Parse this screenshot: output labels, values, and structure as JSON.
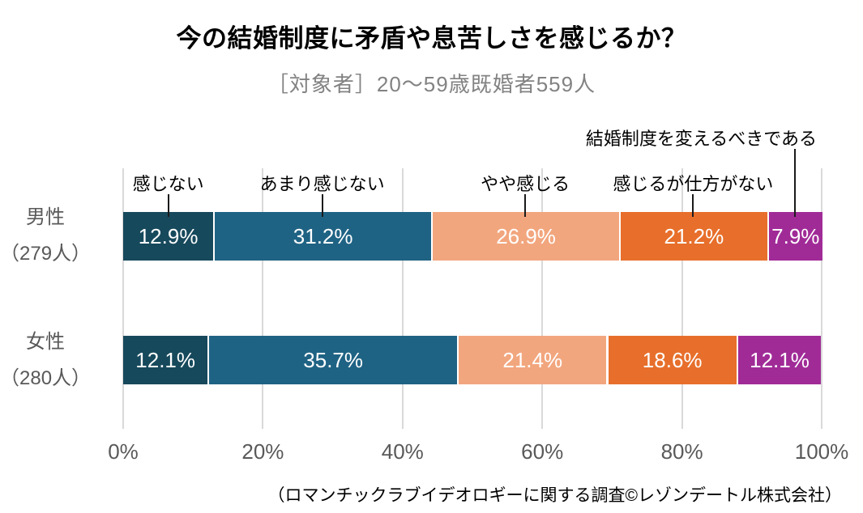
{
  "title": "今の結婚制度に矛盾や息苦しさを感じるか？",
  "subtitle": "［対象者］20〜59歳既婚者559人",
  "source_note": "（ロマンチックラブイデオロギーに関する調査©レゾンデートル株式会社）",
  "colors": {
    "grid": "#d9d9d9",
    "axis_text": "#595959",
    "subtitle_text": "#828282",
    "value_text": "#ffffff",
    "leader_line": "#1a1a1a"
  },
  "chart_data": {
    "type": "bar",
    "variant": "horizontal-stacked-100percent",
    "title": "今の結婚制度に矛盾や息苦しさを感じるか？",
    "subtitle": "［対象者］20〜59歳既婚者559人",
    "categories": [
      {
        "label": "男性",
        "count_label": "（279人）"
      },
      {
        "label": "女性",
        "count_label": "（280人）"
      }
    ],
    "series": [
      {
        "name": "感じない",
        "color": "#17495c",
        "values": [
          12.9,
          12.1
        ]
      },
      {
        "name": "あまり感じない",
        "color": "#1f6384",
        "values": [
          31.2,
          35.7
        ]
      },
      {
        "name": "やや感じる",
        "color": "#f2a67e",
        "values": [
          26.9,
          21.4
        ]
      },
      {
        "name": "感じるが仕方がない",
        "color": "#e76f2b",
        "values": [
          21.2,
          18.6
        ]
      },
      {
        "name": "結婚制度を変えるべきである",
        "color": "#a02b97",
        "values": [
          7.9,
          12.1
        ]
      }
    ],
    "value_suffix": "%",
    "x_ticks": [
      "0%",
      "20%",
      "40%",
      "60%",
      "80%",
      "100%"
    ],
    "xlim": [
      0,
      100
    ],
    "grid": true,
    "legend_position": "labels-above-first-bar",
    "source_note": "（ロマンチックラブイデオロギーに関する調査©レゾンデートル株式会社）"
  }
}
